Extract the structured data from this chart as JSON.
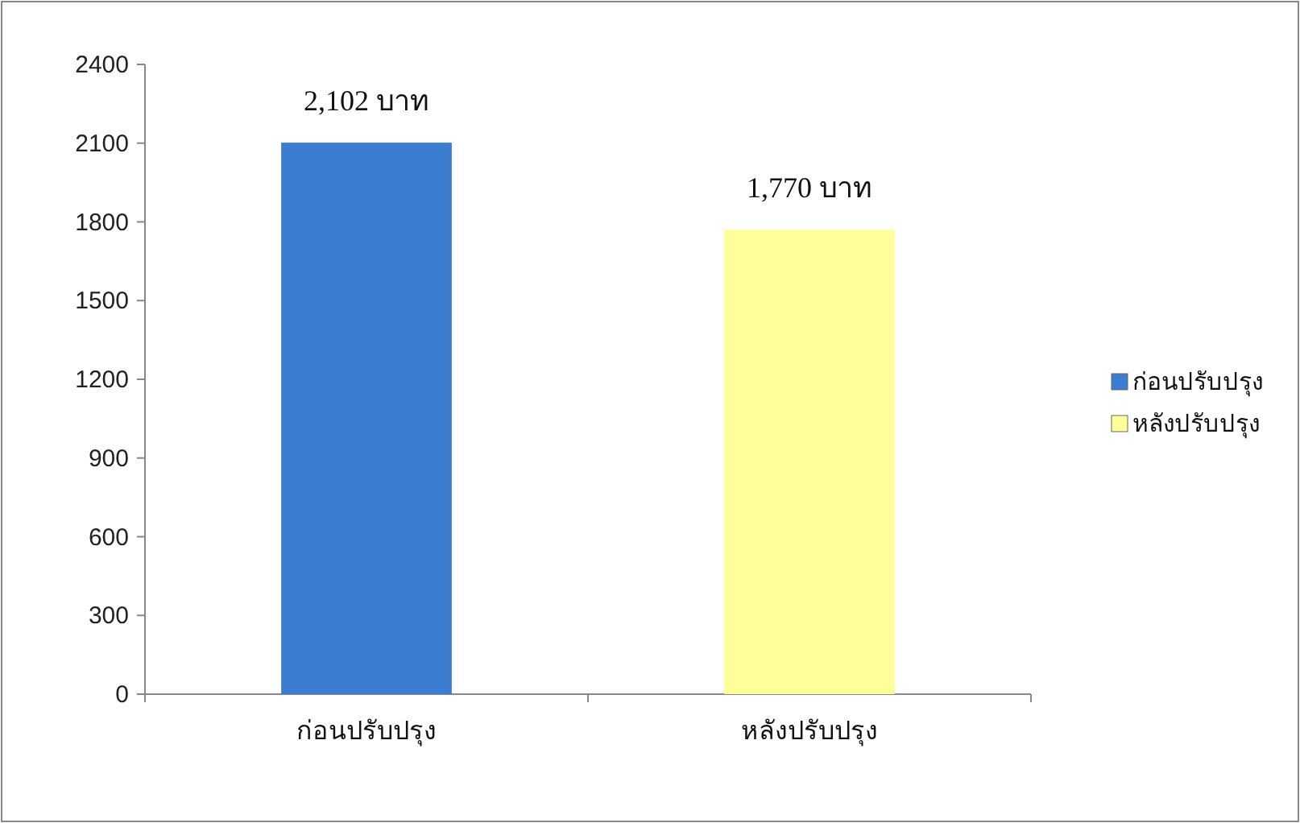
{
  "chart_data": {
    "type": "bar",
    "categories": [
      "ก่อนปรับปรุง",
      "หลังปรับปรุง"
    ],
    "series": [
      {
        "name": "ก่อนปรับปรุง",
        "color": "#3b7dd0",
        "values": [
          2102,
          null
        ],
        "value_labels": [
          "2,102 บาท",
          null
        ]
      },
      {
        "name": "หลังปรับปรุง",
        "color": "#ffff99",
        "values": [
          null,
          1770
        ],
        "value_labels": [
          null,
          "1,770 บาท"
        ]
      }
    ],
    "ylim": [
      0,
      2400
    ],
    "yticks": [
      0,
      300,
      600,
      900,
      1200,
      1500,
      1800,
      2100,
      2400
    ],
    "grid": false,
    "legend": "right"
  }
}
